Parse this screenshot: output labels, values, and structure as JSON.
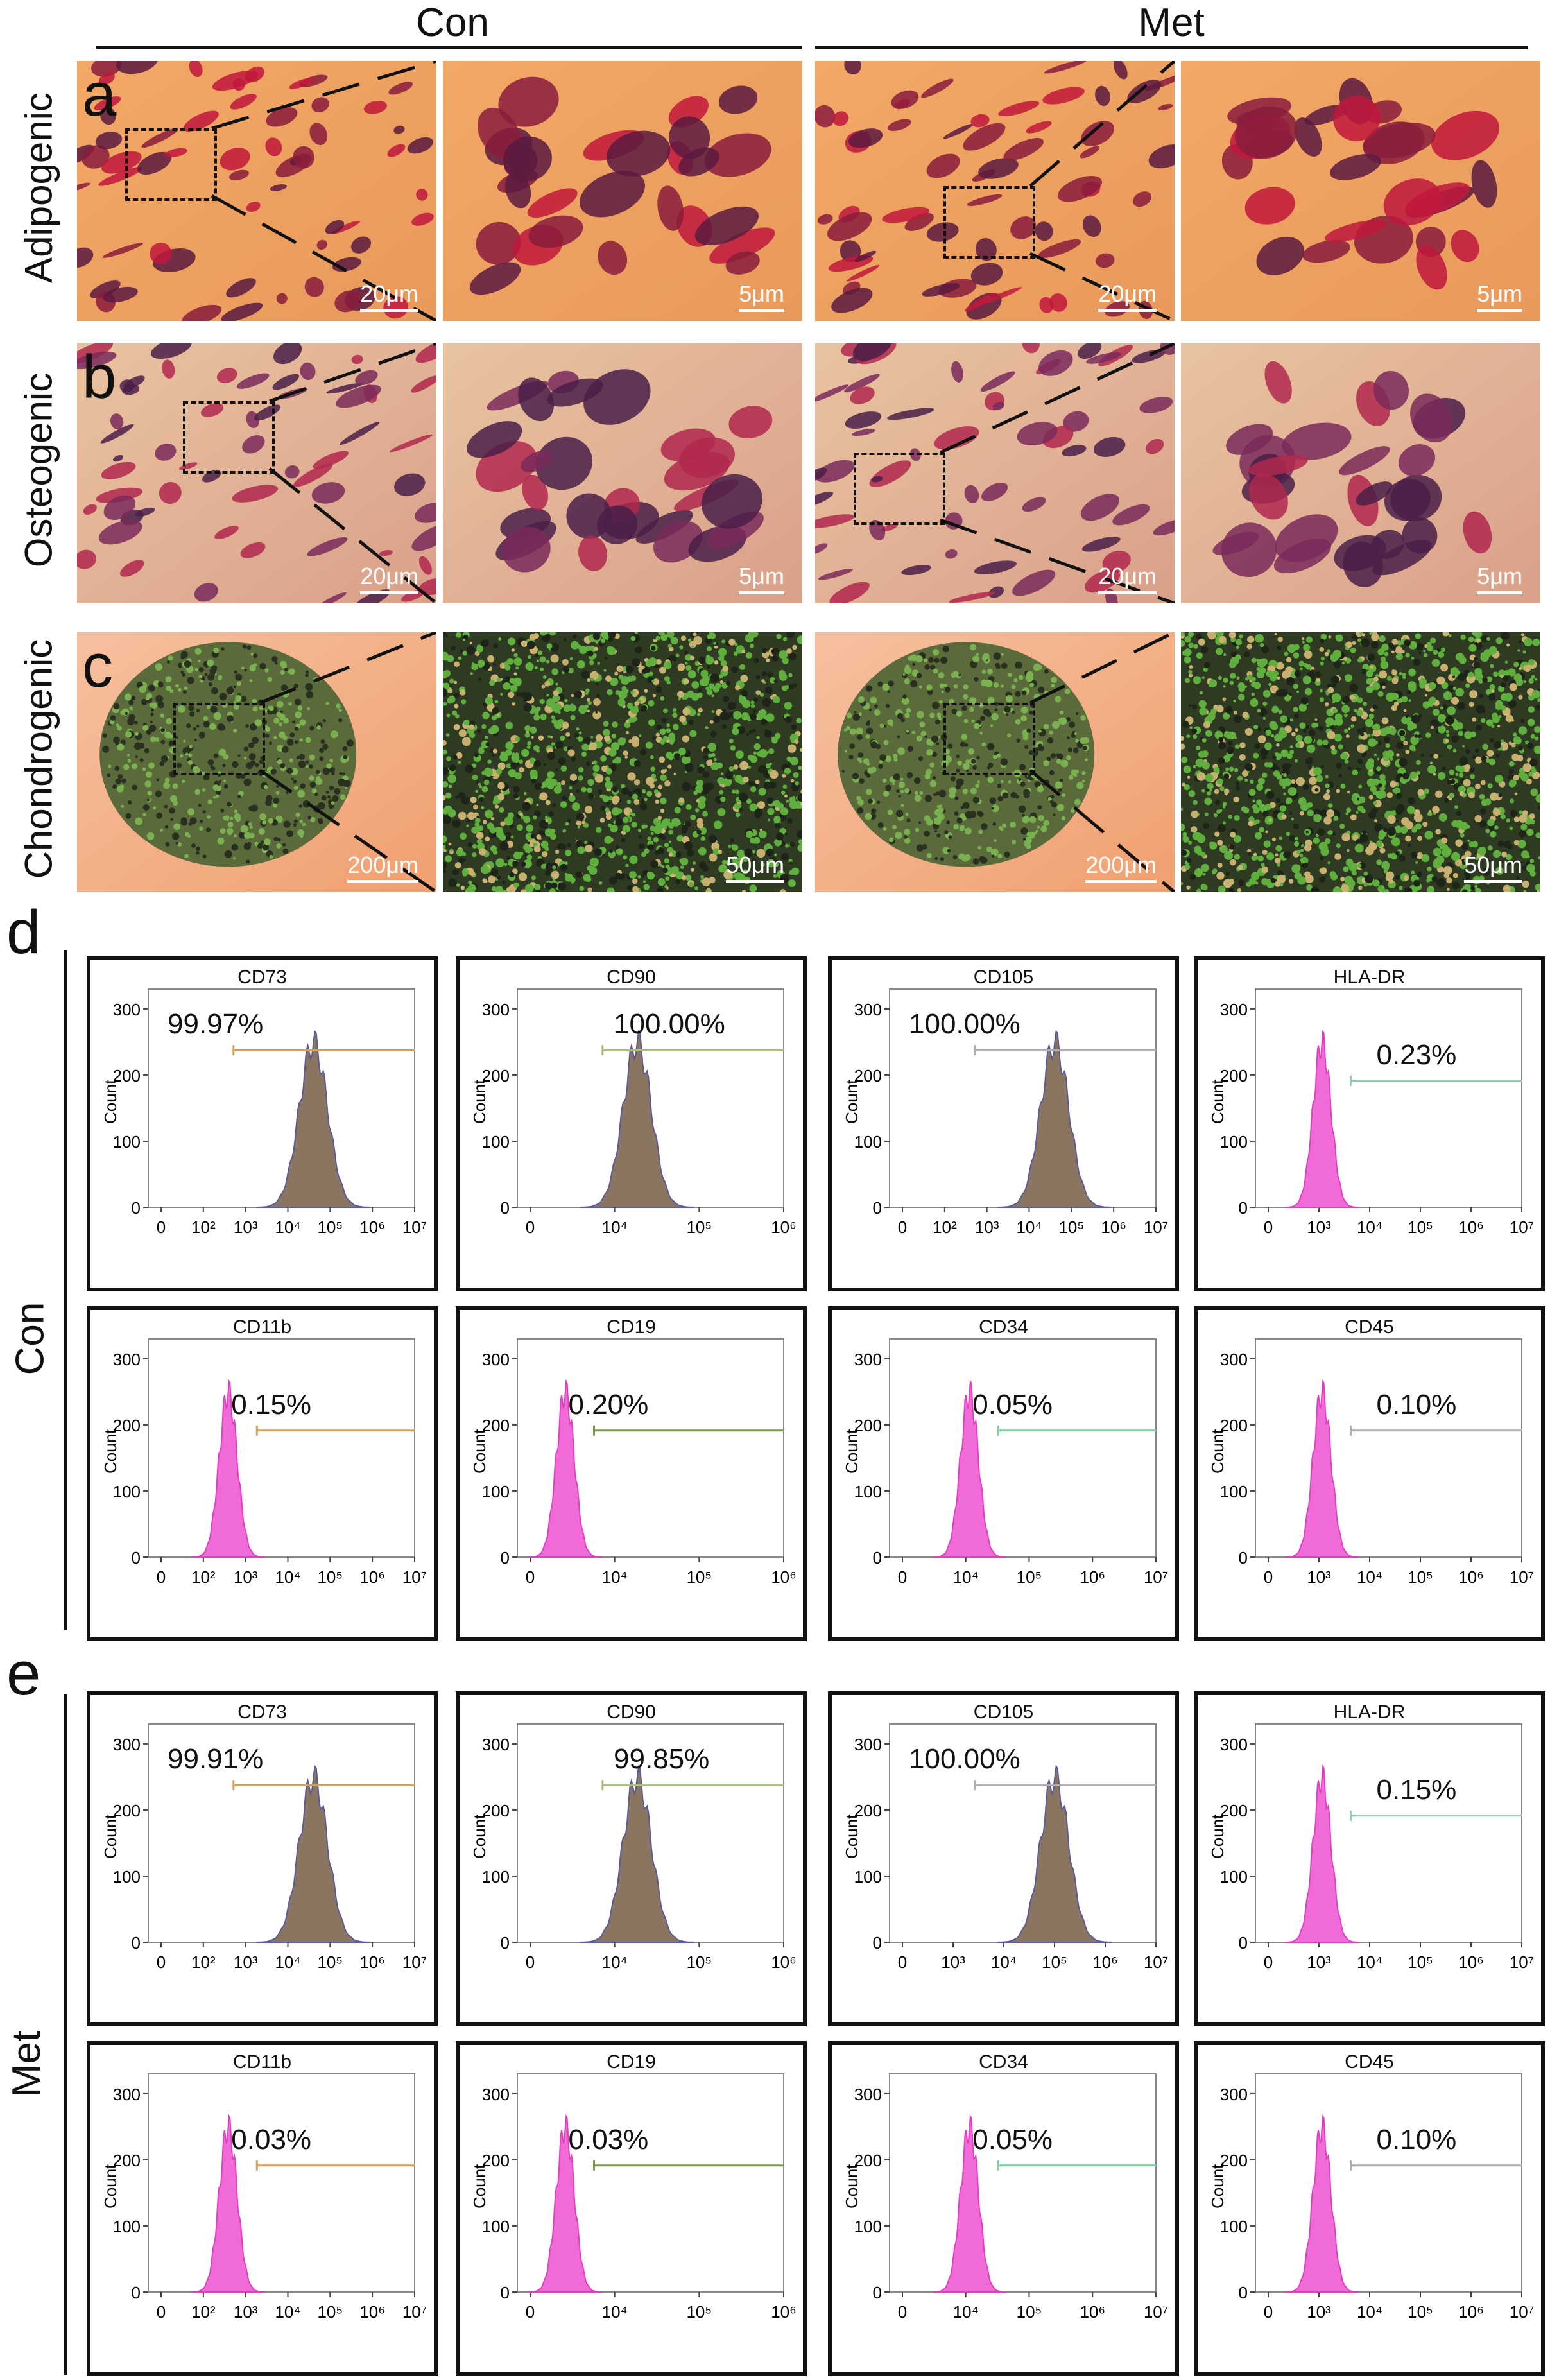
{
  "header": {
    "con": "Con",
    "met": "Met"
  },
  "micrographs": {
    "rows": [
      {
        "letter": "a",
        "label": "Adipogenic",
        "con_scale": "20μm",
        "con_zoom_scale": "5μm",
        "met_scale": "20μm",
        "met_zoom_scale": "5μm"
      },
      {
        "letter": "b",
        "label": "Osteogenic",
        "con_scale": "20μm",
        "con_zoom_scale": "5μm",
        "met_scale": "20μm",
        "met_zoom_scale": "5μm"
      },
      {
        "letter": "c",
        "label": "Chondrogenic",
        "con_scale": "200μm",
        "con_zoom_scale": "50μm",
        "met_scale": "200μm",
        "met_zoom_scale": "50μm"
      }
    ]
  },
  "flow": {
    "d": {
      "letter": "d",
      "group": "Con"
    },
    "e": {
      "letter": "e",
      "group": "Met"
    },
    "y_label": "Count",
    "y_ticks": [
      "0",
      "100",
      "200",
      "300"
    ]
  },
  "chart_data": {
    "type": "histogram-grid",
    "panels": [
      {
        "group": "Con",
        "marker": "CD73",
        "percent": "99.97%",
        "xticks": [
          "0",
          "10²",
          "10³",
          "10⁴",
          "10⁵",
          "10⁶",
          "10⁷"
        ]
      },
      {
        "group": "Con",
        "marker": "CD90",
        "percent": "100.00%",
        "xticks": [
          "0",
          "10⁴",
          "10⁵",
          "10⁶"
        ]
      },
      {
        "group": "Con",
        "marker": "CD105",
        "percent": "100.00%",
        "xticks": [
          "0",
          "10²",
          "10³",
          "10⁴",
          "10⁵",
          "10⁶",
          "10⁷"
        ]
      },
      {
        "group": "Con",
        "marker": "HLA-DR",
        "percent": "0.23%",
        "xticks": [
          "0",
          "10³",
          "10⁴",
          "10⁵",
          "10⁶",
          "10⁷"
        ]
      },
      {
        "group": "Con",
        "marker": "CD11b",
        "percent": "0.15%",
        "xticks": [
          "0",
          "10²",
          "10³",
          "10⁴",
          "10⁵",
          "10⁶",
          "10⁷"
        ]
      },
      {
        "group": "Con",
        "marker": "CD19",
        "percent": "0.20%",
        "xticks": [
          "0",
          "10⁴",
          "10⁵",
          "10⁶"
        ]
      },
      {
        "group": "Con",
        "marker": "CD34",
        "percent": "0.05%",
        "xticks": [
          "0",
          "10⁴",
          "10⁵",
          "10⁶",
          "10⁷"
        ]
      },
      {
        "group": "Con",
        "marker": "CD45",
        "percent": "0.10%",
        "xticks": [
          "0",
          "10³",
          "10⁴",
          "10⁵",
          "10⁶",
          "10⁷"
        ]
      },
      {
        "group": "Met",
        "marker": "CD73",
        "percent": "99.91%",
        "xticks": [
          "0",
          "10²",
          "10³",
          "10⁴",
          "10⁵",
          "10⁶",
          "10⁷"
        ]
      },
      {
        "group": "Met",
        "marker": "CD90",
        "percent": "99.85%",
        "xticks": [
          "0",
          "10⁴",
          "10⁵",
          "10⁶"
        ]
      },
      {
        "group": "Met",
        "marker": "CD105",
        "percent": "100.00%",
        "xticks": [
          "0",
          "10³",
          "10⁴",
          "10⁵",
          "10⁶",
          "10⁷"
        ]
      },
      {
        "group": "Met",
        "marker": "HLA-DR",
        "percent": "0.15%",
        "xticks": [
          "0",
          "10³",
          "10⁴",
          "10⁵",
          "10⁶",
          "10⁷"
        ]
      },
      {
        "group": "Met",
        "marker": "CD11b",
        "percent": "0.03%",
        "xticks": [
          "0",
          "10²",
          "10³",
          "10⁴",
          "10⁵",
          "10⁶",
          "10⁷"
        ]
      },
      {
        "group": "Met",
        "marker": "CD19",
        "percent": "0.03%",
        "xticks": [
          "0",
          "10⁴",
          "10⁵",
          "10⁶"
        ]
      },
      {
        "group": "Met",
        "marker": "CD34",
        "percent": "0.05%",
        "xticks": [
          "0",
          "10⁴",
          "10⁵",
          "10⁶",
          "10⁷"
        ]
      },
      {
        "group": "Met",
        "marker": "CD45",
        "percent": "0.10%",
        "xticks": [
          "0",
          "10³",
          "10⁴",
          "10⁵",
          "10⁶",
          "10⁷"
        ]
      }
    ],
    "peak_types": [
      "positive",
      "positive",
      "positive",
      "negative",
      "negative",
      "negative",
      "negative",
      "negative",
      "positive",
      "positive",
      "positive",
      "negative",
      "negative",
      "negative",
      "negative",
      "negative"
    ]
  }
}
